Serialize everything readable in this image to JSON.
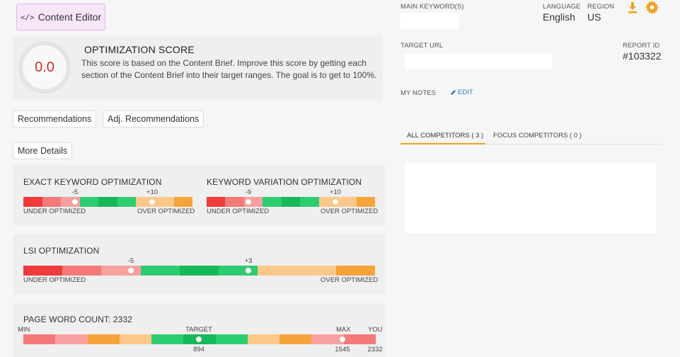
{
  "header": {
    "content_editor_label": "Content Editor",
    "code_icon_text": "</>"
  },
  "score": {
    "value": "0.0",
    "title": "OPTIMIZATION SCORE",
    "description": "This score is based on the Content Brief. Improve this score by getting each section of the Content Brief into their target ranges. The goal is to get to 100%."
  },
  "tabs": {
    "recommendations": "Recommendations",
    "adj_recommendations": "Adj. Recommendations",
    "more_details": "More Details"
  },
  "exact_keyword": {
    "title": "EXACT KEYWORD OPTIMIZATION",
    "tick_low": "-5",
    "tick_high": "+10",
    "under": "UNDER OPTIMIZED",
    "over": "OVER OPTIMIZED"
  },
  "keyword_variation": {
    "title": "KEYWORD VARIATION OPTIMIZATION",
    "tick_low": "-9",
    "tick_high": "+10",
    "under": "UNDER OPTIMIZED",
    "over": "OVER OPTIMIZED"
  },
  "lsi": {
    "title": "LSI OPTIMIZATION",
    "tick_low": "-5",
    "tick_high": "+3",
    "under": "UNDER OPTIMIZED",
    "over": "OVER OPTIMIZED"
  },
  "word_count": {
    "title": "PAGE WORD COUNT: 2332",
    "min_label": "MIN",
    "target_label": "TARGET",
    "max_label": "MAX",
    "you_label": "YOU",
    "target_value": "894",
    "max_value": "1545",
    "you_value": "2332"
  },
  "right": {
    "main_keywords_label": "MAIN KEYWORD(S)",
    "language_label": "LANGUAGE",
    "language_value": "English",
    "region_label": "REGION",
    "region_value": "US",
    "target_url_label": "TARGET URL",
    "report_id_label": "REPORT ID",
    "report_id_value": "#103322",
    "my_notes_label": "MY NOTES",
    "edit_label": "EDIT",
    "all_competitors": "ALL COMPETITORS ( 3 )",
    "focus_competitors": "FOCUS COMPETITORS ( 0 )"
  },
  "colors": {
    "red": "#ef3b3b",
    "light_red": "#f47a7a",
    "pink": "#f7a0a0",
    "green": "#2ecc71",
    "dark_green": "#17b85a",
    "light_orange": "#fcc98a",
    "orange": "#f6a33a",
    "accent_orange": "#f0a020"
  },
  "icons": {
    "download": "download-icon",
    "settings": "gear-icon",
    "edit": "pencil-icon"
  }
}
